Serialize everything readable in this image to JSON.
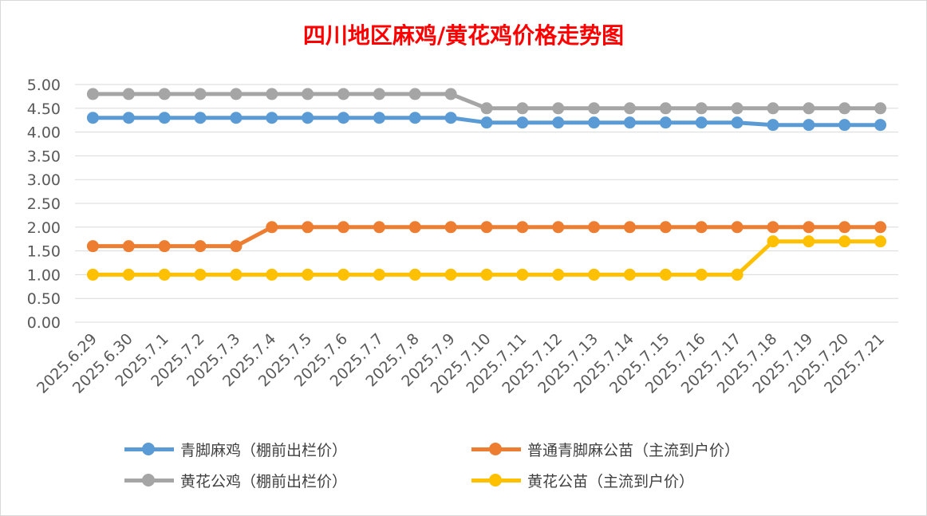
{
  "chart_data": {
    "type": "line",
    "title": "四川地区麻鸡/黄花鸡价格走势图",
    "xlabel": "",
    "ylabel": "",
    "ylim": [
      0,
      5
    ],
    "yticks": [
      "0.00",
      "0.50",
      "1.00",
      "1.50",
      "2.00",
      "2.50",
      "3.00",
      "3.50",
      "4.00",
      "4.50",
      "5.00"
    ],
    "grid": true,
    "legend_position": "bottom",
    "categories": [
      "2025.6.29",
      "2025.6.30",
      "2025.7.1",
      "2025.7.2",
      "2025.7.3",
      "2025.7.4",
      "2025.7.5",
      "2025.7.6",
      "2025.7.7",
      "2025.7.8",
      "2025.7.9",
      "2025.7.10",
      "2025.7.11",
      "2025.7.12",
      "2025.7.13",
      "2025.7.14",
      "2025.7.15",
      "2025.7.16",
      "2025.7.17",
      "2025.7.18",
      "2025.7.19",
      "2025.7.20",
      "2025.7.21"
    ],
    "series": [
      {
        "name": "青脚麻鸡（棚前出栏价）",
        "color": "#5b9bd5",
        "values": [
          4.3,
          4.3,
          4.3,
          4.3,
          4.3,
          4.3,
          4.3,
          4.3,
          4.3,
          4.3,
          4.3,
          4.2,
          4.2,
          4.2,
          4.2,
          4.2,
          4.2,
          4.2,
          4.2,
          4.15,
          4.15,
          4.15,
          4.15
        ]
      },
      {
        "name": "普通青脚麻公苗（主流到户价）",
        "color": "#ed7d31",
        "values": [
          1.6,
          1.6,
          1.6,
          1.6,
          1.6,
          2.0,
          2.0,
          2.0,
          2.0,
          2.0,
          2.0,
          2.0,
          2.0,
          2.0,
          2.0,
          2.0,
          2.0,
          2.0,
          2.0,
          2.0,
          2.0,
          2.0,
          2.0
        ]
      },
      {
        "name": "黄花公鸡（棚前出栏价）",
        "color": "#a5a5a5",
        "values": [
          4.8,
          4.8,
          4.8,
          4.8,
          4.8,
          4.8,
          4.8,
          4.8,
          4.8,
          4.8,
          4.8,
          4.5,
          4.5,
          4.5,
          4.5,
          4.5,
          4.5,
          4.5,
          4.5,
          4.5,
          4.5,
          4.5,
          4.5
        ]
      },
      {
        "name": "黄花公苗（主流到户价）",
        "color": "#ffc000",
        "values": [
          1.0,
          1.0,
          1.0,
          1.0,
          1.0,
          1.0,
          1.0,
          1.0,
          1.0,
          1.0,
          1.0,
          1.0,
          1.0,
          1.0,
          1.0,
          1.0,
          1.0,
          1.0,
          1.0,
          1.7,
          1.7,
          1.7,
          1.7
        ]
      }
    ]
  }
}
